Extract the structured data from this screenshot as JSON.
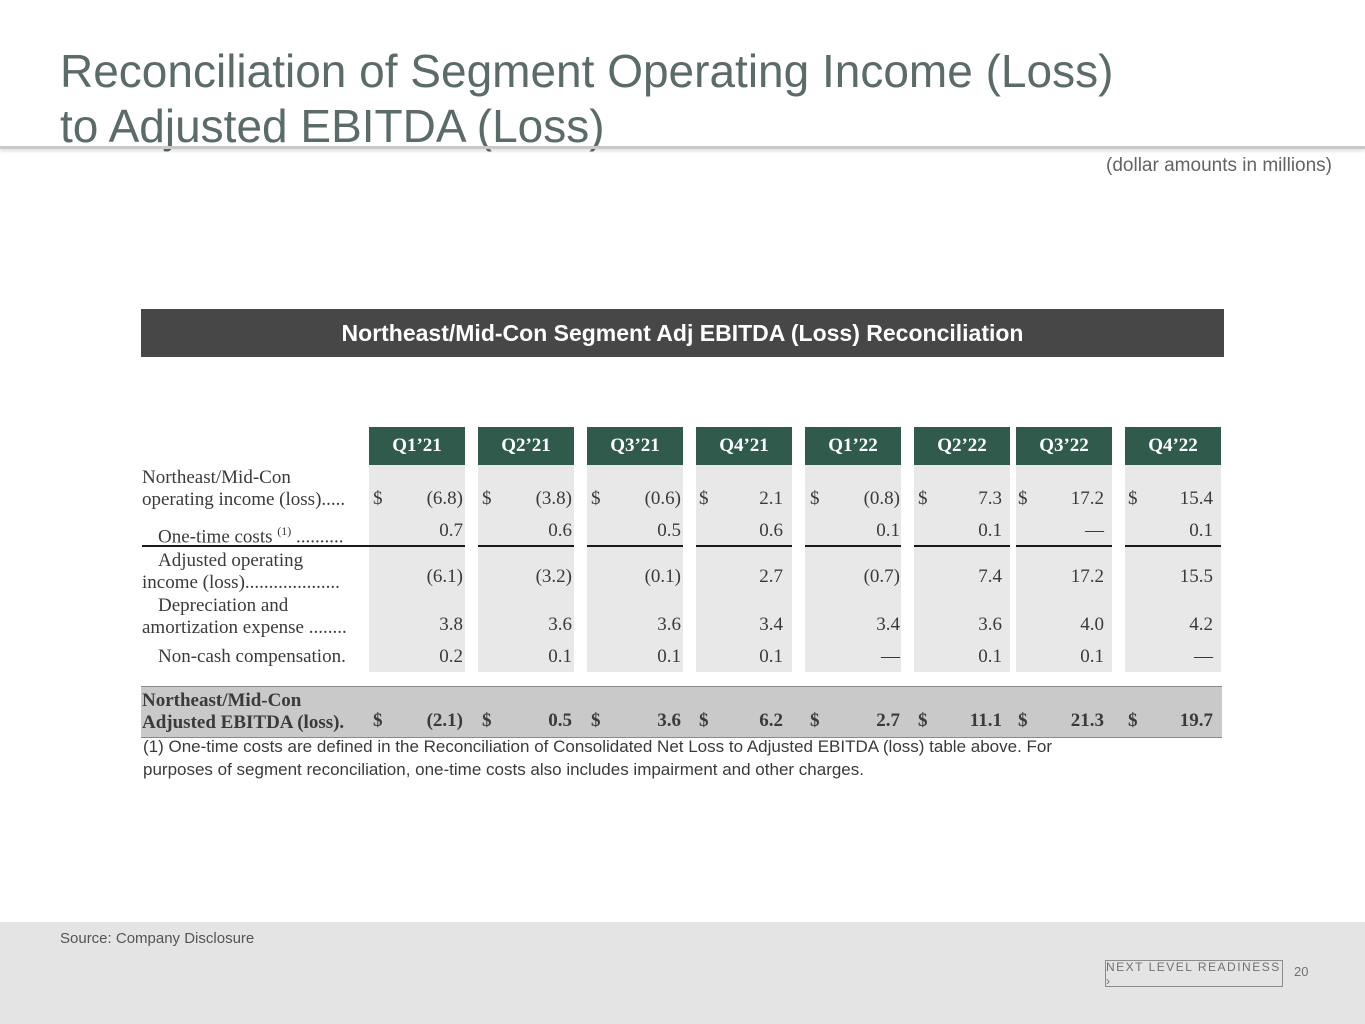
{
  "slide": {
    "title_line1": "Reconciliation of Segment Operating Income (Loss)",
    "title_line2": "to Adjusted EBITDA (Loss)",
    "units_note": "(dollar amounts in millions)",
    "banner": "Northeast/Mid-Con Segment Adj EBITDA (Loss) Reconciliation"
  },
  "table": {
    "columns": [
      "Q1’21",
      "Q2’21",
      "Q3’21",
      "Q4’21",
      "Q1’22",
      "Q2’22",
      "Q3’22",
      "Q4’22"
    ],
    "currency_symbol": "$",
    "rows": [
      {
        "label_line1": "Northeast/Mid-Con",
        "label_line2": "operating income (loss).....",
        "values": [
          "(6.8)",
          "(3.8)",
          "(0.6)",
          "2.1",
          "(0.8)",
          "7.3",
          "17.2",
          "15.4"
        ]
      },
      {
        "label_line1": "One-time costs ",
        "label_sup": "(1)",
        "label_line2": " ..........",
        "values": [
          "0.7",
          "0.6",
          "0.5",
          "0.6",
          "0.1",
          "0.1",
          "—",
          "0.1"
        ]
      },
      {
        "label_line1": "Adjusted operating",
        "label_line2": "income (loss)....................",
        "values": [
          "(6.1)",
          "(3.2)",
          "(0.1)",
          "2.7",
          "(0.7)",
          "7.4",
          "17.2",
          "15.5"
        ]
      },
      {
        "label_line1": "Depreciation and",
        "label_line2": "amortization expense ........",
        "values": [
          "3.8",
          "3.6",
          "3.6",
          "3.4",
          "3.4",
          "3.6",
          "4.0",
          "4.2"
        ]
      },
      {
        "label_line1": "Non-cash compensation.",
        "values": [
          "0.2",
          "0.1",
          "0.1",
          "0.1",
          "—",
          "0.1",
          "0.1",
          "—"
        ]
      }
    ],
    "total": {
      "label_line1": "Northeast/Mid-Con",
      "label_line2": "Adjusted EBITDA (loss).",
      "values": [
        "(2.1)",
        "0.5",
        "3.6",
        "6.2",
        "2.7",
        "11.1",
        "21.3",
        "19.7"
      ]
    },
    "footnote_line1": "(1) One-time costs are defined in the Reconciliation of Consolidated Net Loss to Adjusted EBITDA (loss) table above. For",
    "footnote_line2": "purposes of segment reconciliation, one-time costs also includes impairment and other charges."
  },
  "footer": {
    "source": "Source: Company Disclosure",
    "brand": "NEXT LEVEL READINESS ›",
    "page_number": "20"
  }
}
